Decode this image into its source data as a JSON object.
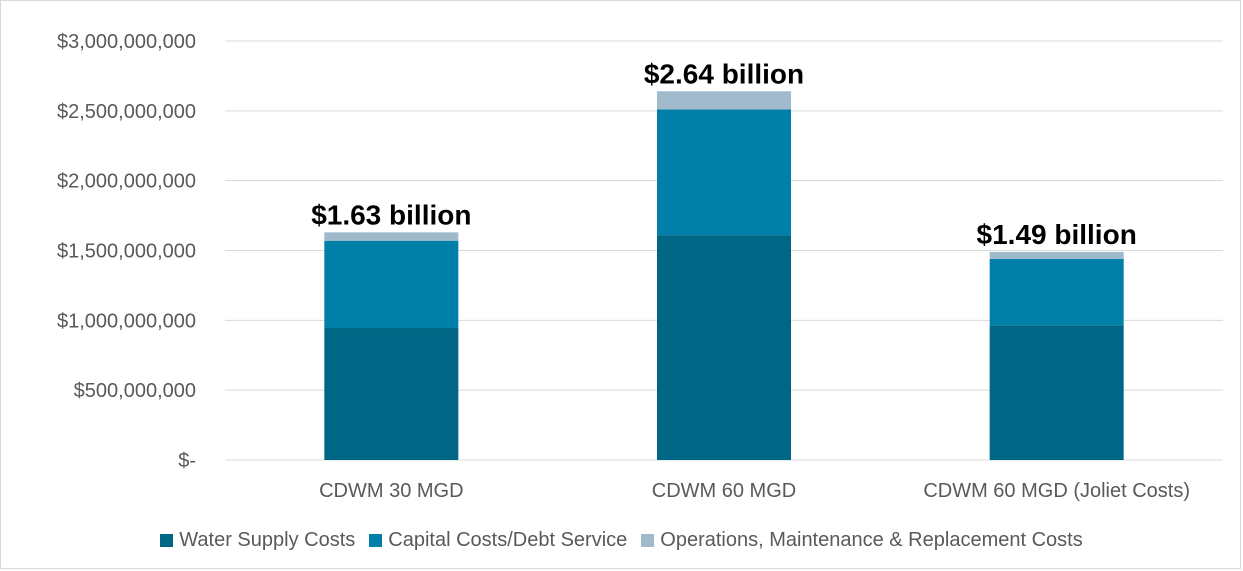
{
  "chart_data": {
    "type": "bar",
    "stacked": true,
    "categories": [
      "CDWM 30 MGD",
      "CDWM 60 MGD",
      "CDWM 60 MGD (Joliet Costs)"
    ],
    "series": [
      {
        "name": "Water Supply Costs",
        "color": "#006685",
        "values": [
          945000000,
          1610000000,
          965000000
        ]
      },
      {
        "name": "Capital Costs/Debt Service",
        "color": "#0080A8",
        "values": [
          625000000,
          900000000,
          475000000
        ]
      },
      {
        "name": "Operations, Maintenance & Replacement Costs",
        "color": "#A0BACB",
        "values": [
          60000000,
          130000000,
          50000000
        ]
      }
    ],
    "totals_labels": [
      "$1.63 billion",
      "$2.64 billion",
      "$1.49 billion"
    ],
    "y_ticks": [
      "$-",
      "$500,000,000",
      "$1,000,000,000",
      "$1,500,000,000",
      "$2,000,000,000",
      "$2,500,000,000",
      "$3,000,000,000"
    ],
    "ylim": [
      0,
      3000000000
    ],
    "grid": true,
    "legend_position": "bottom"
  }
}
